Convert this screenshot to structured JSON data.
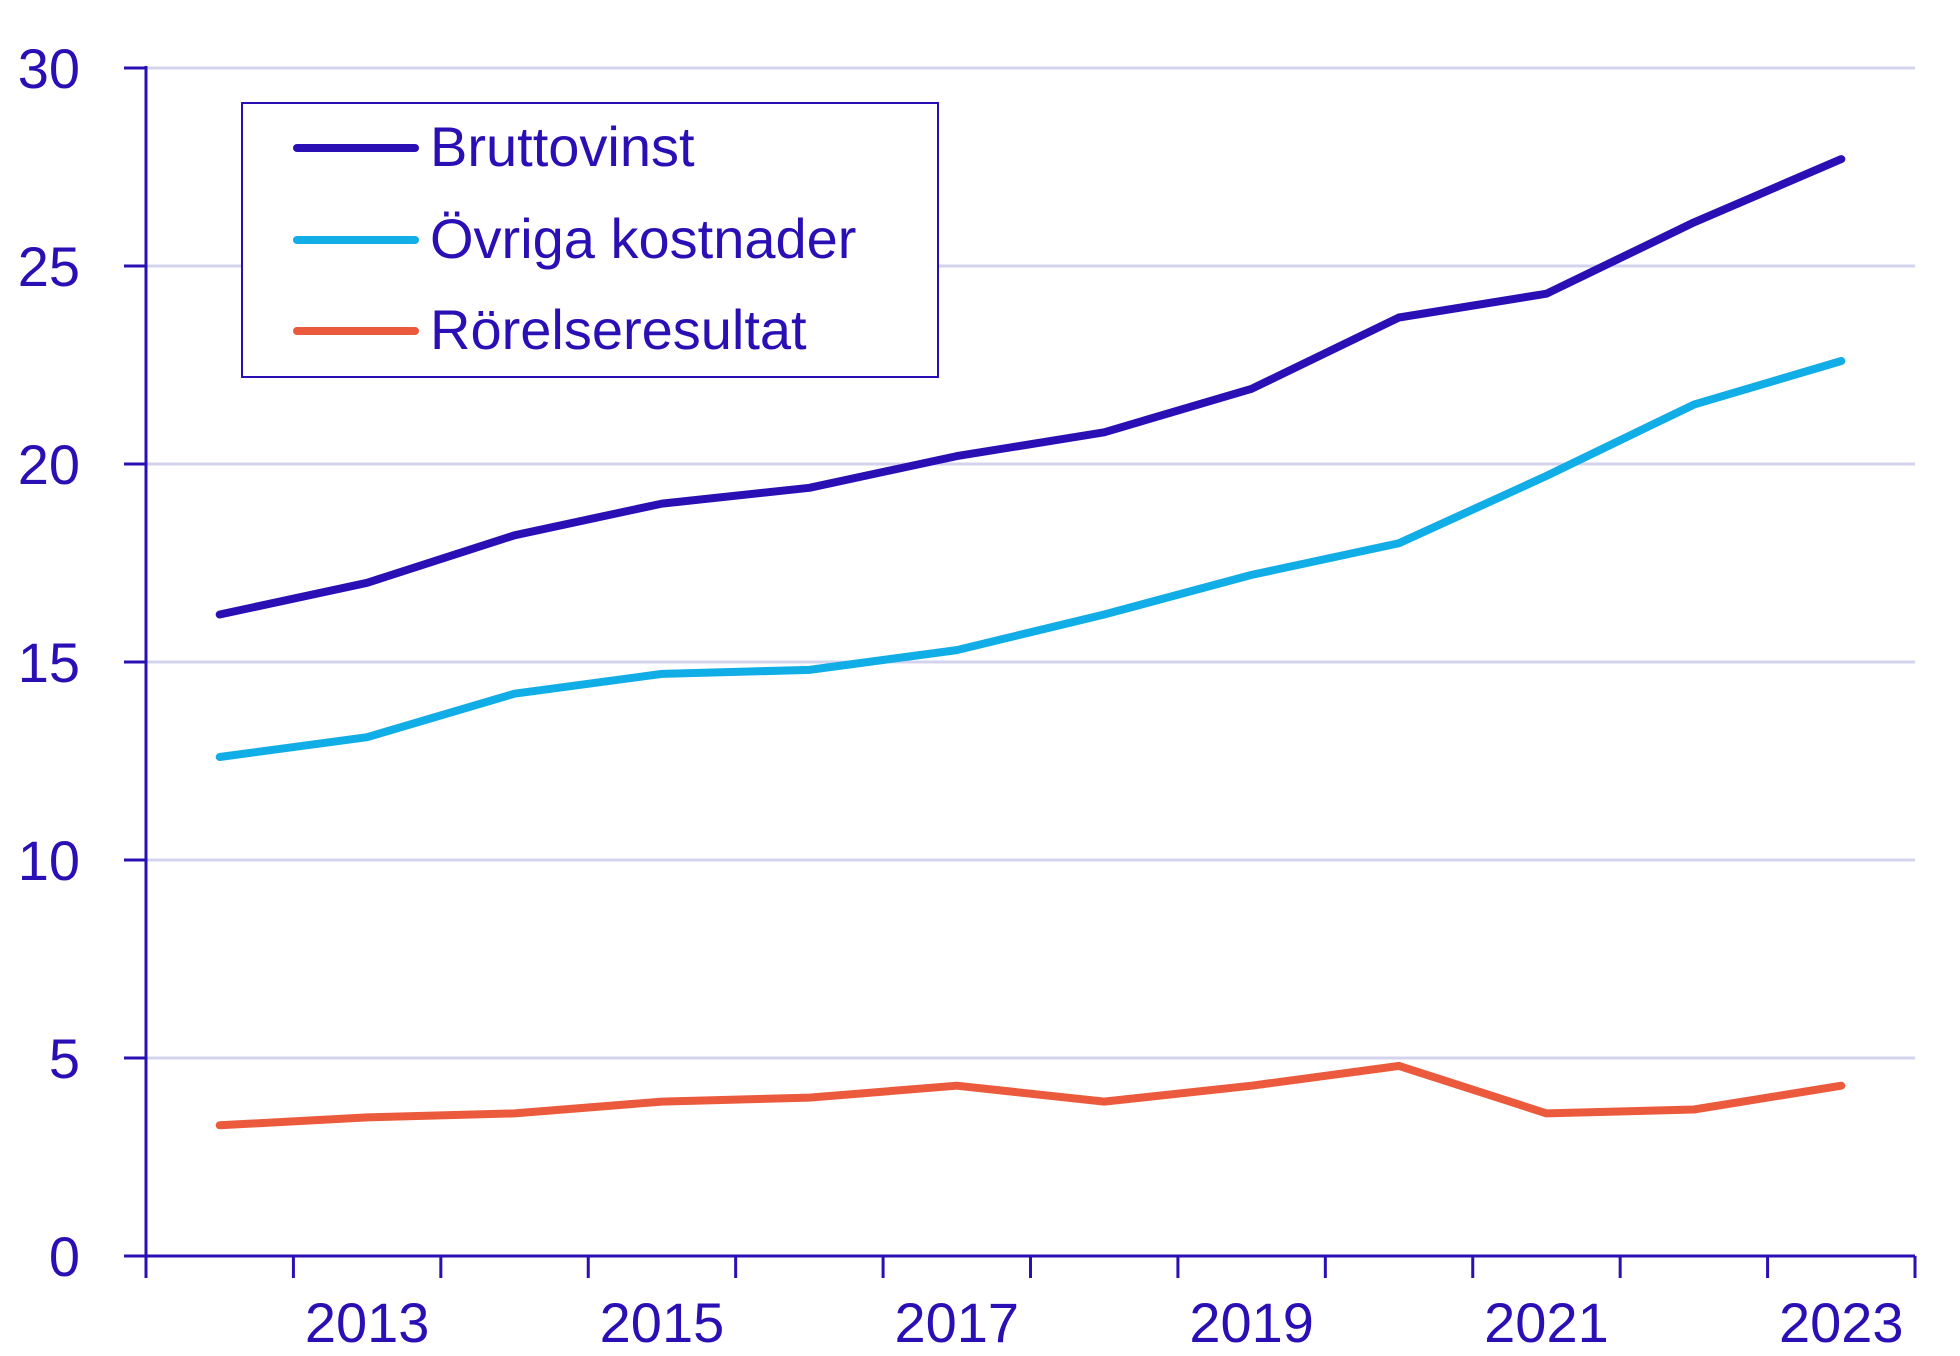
{
  "chart_data": {
    "type": "line",
    "title": "",
    "xlabel": "",
    "ylabel": "",
    "ylim": [
      0,
      30
    ],
    "yticks": [
      0,
      5,
      10,
      15,
      20,
      25,
      30
    ],
    "x_tick_labels": [
      "2013",
      "2015",
      "2017",
      "2019",
      "2021",
      "2023"
    ],
    "x": [
      2012,
      2013,
      2014,
      2015,
      2016,
      2017,
      2018,
      2019,
      2020,
      2021,
      2022,
      2023
    ],
    "grid": "horizontal",
    "legend_position": "top-left",
    "series": [
      {
        "name": "Bruttovinst",
        "color": "#2a0fb5",
        "values": [
          16.2,
          17.0,
          18.2,
          19.0,
          19.4,
          20.2,
          20.8,
          21.9,
          23.7,
          24.3,
          26.1,
          27.7
        ]
      },
      {
        "name": "Övriga kostnader",
        "color": "#10ade6",
        "values": [
          12.6,
          13.1,
          14.2,
          14.7,
          14.8,
          15.3,
          16.2,
          17.2,
          18.0,
          19.7,
          21.5,
          22.6
        ]
      },
      {
        "name": "Rörelseresultat",
        "color": "#eb5a3c",
        "values": [
          3.3,
          3.5,
          3.6,
          3.9,
          4.0,
          4.3,
          3.9,
          4.3,
          4.8,
          3.6,
          3.7,
          4.3
        ]
      }
    ]
  },
  "colors": {
    "axis": "#2a0fb5",
    "grid": "#d4d3ee"
  }
}
